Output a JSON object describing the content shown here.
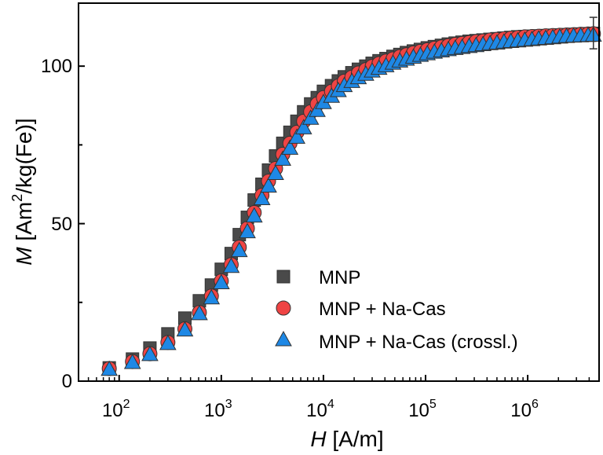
{
  "chart_data": {
    "type": "scatter",
    "xscale": "log",
    "xlim": [
      40,
      5000000
    ],
    "ylim": [
      0,
      120
    ],
    "x_tick_values": [
      100,
      1000,
      10000,
      100000,
      1000000
    ],
    "x_tick_labels": [
      {
        "base": "10",
        "exp": "2"
      },
      {
        "base": "10",
        "exp": "3"
      },
      {
        "base": "10",
        "exp": "4"
      },
      {
        "base": "10",
        "exp": "5"
      },
      {
        "base": "10",
        "exp": "6"
      }
    ],
    "y_ticks": [
      0,
      50,
      100
    ],
    "y_tick_labels": [
      "0",
      "50",
      "100"
    ],
    "xlabel": {
      "var": "H",
      "unit": " [A/m]"
    },
    "ylabel": {
      "var": "M",
      "unit_pre": " [Am",
      "sup": "2",
      "unit_post": "/kg(Fe)]"
    },
    "legend_position": "center-right",
    "series": [
      {
        "name": "MNP",
        "marker": "square",
        "color": "#4a4a4a",
        "x": [
          80,
          135,
          200,
          300,
          440,
          610,
          800,
          1000,
          1250,
          1500,
          1800,
          2100,
          2500,
          2900,
          3400,
          4000,
          4700,
          5500,
          6400,
          7500,
          8700,
          10000,
          12000,
          14000,
          16000,
          19000,
          22000,
          26000,
          30000,
          35000,
          41000,
          48000,
          56000,
          65000,
          76000,
          89000,
          104000,
          122000,
          143000,
          167000,
          195000,
          228000,
          267000,
          312000,
          365000,
          427000,
          500000,
          585000,
          684000,
          800000,
          936000,
          1100000,
          1280000,
          1500000,
          1760000,
          2060000,
          2400000,
          2810000,
          3300000,
          3900000,
          4400000
        ],
        "y": [
          4.2,
          7.0,
          10.5,
          15.0,
          20.0,
          25.5,
          30.5,
          35.5,
          40.5,
          46.5,
          52.0,
          57.5,
          62.5,
          67.0,
          71.5,
          75.5,
          79.0,
          82.5,
          85.5,
          88.0,
          90.0,
          92.0,
          93.8,
          95.3,
          96.6,
          97.9,
          99.0,
          100.0,
          100.9,
          101.7,
          102.4,
          103.1,
          103.7,
          104.3,
          104.8,
          105.3,
          105.8,
          106.2,
          106.6,
          107.0,
          107.3,
          107.6,
          107.9,
          108.1,
          108.3,
          108.5,
          108.7,
          108.9,
          109.1,
          109.3,
          109.4,
          109.5,
          109.6,
          109.7,
          109.8,
          109.9,
          110.0,
          110.1,
          110.2,
          110.3,
          110.4
        ]
      },
      {
        "name": "MNP + Na-Cas",
        "marker": "circle",
        "color": "#ef4444",
        "x": [
          80,
          135,
          200,
          300,
          440,
          610,
          800,
          1000,
          1250,
          1500,
          1800,
          2100,
          2500,
          2900,
          3400,
          4000,
          4700,
          5500,
          6400,
          7500,
          8700,
          10000,
          12000,
          14000,
          16000,
          19000,
          22000,
          26000,
          30000,
          35000,
          41000,
          48000,
          56000,
          65000,
          76000,
          89000,
          104000,
          122000,
          143000,
          167000,
          195000,
          228000,
          267000,
          312000,
          365000,
          427000,
          500000,
          585000,
          684000,
          800000,
          936000,
          1100000,
          1280000,
          1500000,
          1760000,
          2060000,
          2400000,
          2810000,
          3300000,
          3900000,
          4400000
        ],
        "y": [
          4.0,
          6.2,
          8.7,
          12.3,
          16.6,
          21.8,
          27.0,
          31.8,
          37.0,
          42.5,
          48.5,
          53.5,
          59.0,
          63.5,
          67.5,
          72.0,
          75.5,
          79.0,
          82.5,
          85.5,
          88.0,
          90.0,
          92.0,
          93.7,
          95.2,
          96.5,
          97.8,
          98.9,
          99.9,
          100.8,
          101.6,
          102.3,
          103.0,
          103.6,
          104.2,
          104.7,
          105.2,
          105.7,
          106.1,
          106.5,
          106.9,
          107.2,
          107.5,
          107.8,
          108.0,
          108.3,
          108.5,
          108.7,
          108.9,
          109.1,
          109.3,
          109.4,
          109.5,
          109.6,
          109.7,
          109.8,
          109.9,
          110.0,
          110.1,
          110.2,
          110.3
        ]
      },
      {
        "name": "MNP + Na-Cas (crossl.)",
        "marker": "triangle",
        "color": "#1e88e5",
        "x": [
          80,
          135,
          200,
          300,
          440,
          610,
          800,
          1000,
          1250,
          1500,
          1800,
          2100,
          2500,
          2900,
          3400,
          4000,
          4700,
          5500,
          6400,
          7500,
          8700,
          10000,
          12000,
          14000,
          16000,
          19000,
          22000,
          26000,
          30000,
          35000,
          41000,
          48000,
          56000,
          65000,
          76000,
          89000,
          104000,
          122000,
          143000,
          167000,
          195000,
          228000,
          267000,
          312000,
          365000,
          427000,
          500000,
          585000,
          684000,
          800000,
          936000,
          1100000,
          1280000,
          1500000,
          1760000,
          2060000,
          2400000,
          2810000,
          3300000,
          3900000,
          4400000
        ],
        "y": [
          3.8,
          6.0,
          8.5,
          12.0,
          16.3,
          21.5,
          26.5,
          31.3,
          36.5,
          41.5,
          47.5,
          52.5,
          58.0,
          62.0,
          66.0,
          70.5,
          74.0,
          77.5,
          80.5,
          83.5,
          86.0,
          88.5,
          90.5,
          92.3,
          93.9,
          95.2,
          96.4,
          97.5,
          98.5,
          99.4,
          100.2,
          101.0,
          101.7,
          102.3,
          102.9,
          103.5,
          104.0,
          104.5,
          104.9,
          105.3,
          105.7,
          106.0,
          106.3,
          106.6,
          106.9,
          107.2,
          107.4,
          107.7,
          107.9,
          108.1,
          108.3,
          108.5,
          108.7,
          108.9,
          109.1,
          109.3,
          109.5,
          109.6,
          109.7,
          109.8,
          109.9
        ]
      }
    ],
    "error_bar": {
      "x": 4400000,
      "y": 110.4,
      "low": 105.5,
      "high": 115.5
    }
  }
}
